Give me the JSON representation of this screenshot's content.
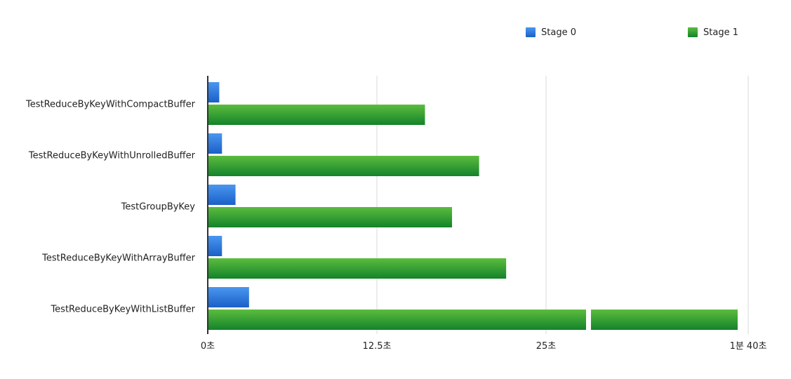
{
  "chart_data": {
    "type": "bar",
    "orientation": "horizontal",
    "categories": [
      "TestReduceByKeyWithCompactBuffer",
      "TestReduceByKeyWithUnrolledBuffer",
      "TestGroupByKey",
      "TestReduceByKeyWithArrayBuffer",
      "TestReduceByKeyWithListBuffer"
    ],
    "series": [
      {
        "name": "Stage 0",
        "color": "#1f6fd6",
        "values": [
          0.8,
          1.0,
          2.0,
          1.0,
          3.0
        ]
      },
      {
        "name": "Stage 1",
        "color": "#2e9a2e",
        "values": [
          16.0,
          20.0,
          18.0,
          22.0,
          100.0
        ]
      }
    ],
    "x_ticks": [
      "0초",
      "12.5초",
      "25초",
      "1분 40초"
    ],
    "x_axis_scale": "broken",
    "x_axis_break_between": [
      "25초",
      "1분 40초"
    ],
    "legend_position": "top-right",
    "grid": true
  }
}
